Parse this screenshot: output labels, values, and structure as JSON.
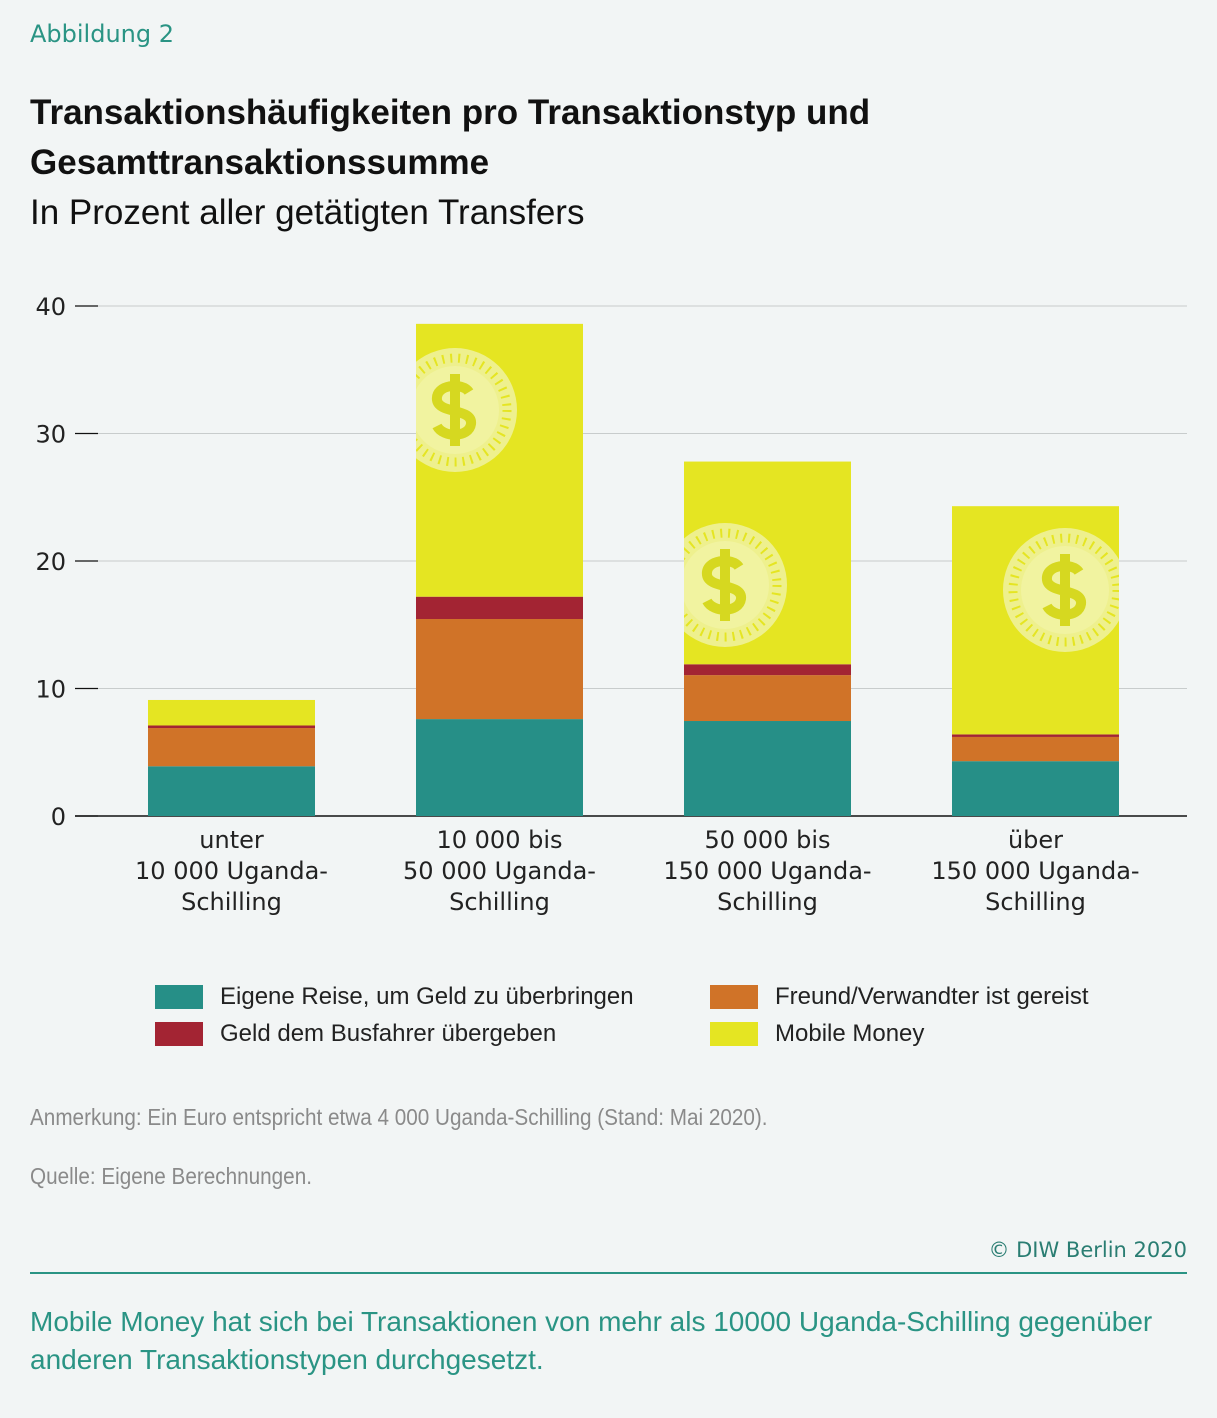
{
  "figure_label": "Abbildung 2",
  "title": "Transaktionshäufigkeiten pro Transaktionstyp und Gesamttransaktionssumme",
  "subtitle": "In Prozent aller getätigten Transfers",
  "chart_data": {
    "type": "bar",
    "stacked": true,
    "title": "Transaktionshäufigkeiten pro Transaktionstyp und Gesamttransaktionssumme",
    "ylabel": "In Prozent aller getätigten Transfers",
    "xlabel": "",
    "ylim": [
      0,
      40
    ],
    "yticks": [
      0,
      10,
      20,
      30,
      40
    ],
    "grid": true,
    "legend_position": "bottom",
    "categories": [
      [
        "unter",
        "10 000 Uganda-",
        "Schilling"
      ],
      [
        "10 000 bis",
        "50 000 Uganda-",
        "Schilling"
      ],
      [
        "50 000 bis",
        "150 000 Uganda-",
        "Schilling"
      ],
      [
        "über",
        "150 000 Uganda-",
        "Schilling"
      ]
    ],
    "series": [
      {
        "name": "Eigene Reise, um Geld zu überbringen",
        "color": "#268f87",
        "values": [
          3.9,
          7.6,
          7.45,
          4.3
        ]
      },
      {
        "name": "Freund/Verwandter ist gereist",
        "color": "#d07328",
        "values": [
          3.0,
          7.85,
          3.6,
          1.9
        ]
      },
      {
        "name": "Geld dem Busfahrer übergeben",
        "color": "#a32433",
        "values": [
          0.2,
          1.75,
          0.85,
          0.2
        ]
      },
      {
        "name": "Mobile Money",
        "color": "#e5e522",
        "values": [
          2.0,
          21.4,
          15.9,
          17.9
        ]
      }
    ]
  },
  "note": "Anmerkung: Ein Euro entspricht etwa 4 000 Uganda-Schilling (Stand: Mai 2020).",
  "source": "Quelle: Eigene Berechnungen.",
  "copyright": "© DIW Berlin 2020",
  "takeaway": "Mobile Money hat sich bei Transaktionen von mehr als 10000 Uganda-Schilling gegenüber anderen Transaktionstypen durchgesetzt."
}
